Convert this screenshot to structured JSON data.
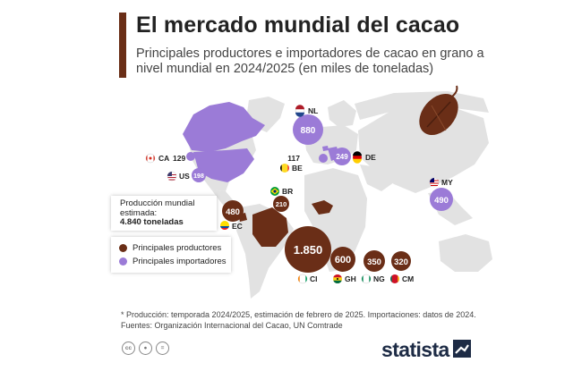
{
  "title": "El mercado mundial del cacao",
  "subtitle": "Principales productores e importadores de cacao en grano a nivel mundial en 2024/2025 (en miles de toneladas)",
  "production_box": {
    "label": "Producción mundial estimada:",
    "value": "4.840 toneladas"
  },
  "legend": {
    "producers_label": "Principales productores",
    "importers_label": "Principales importadores"
  },
  "footnote": {
    "line1": "* Producción: temporada 2024/2025, estimación de febrero de 2025. Importaciones: datos de 2024.",
    "line2": "Fuentes: Organización Internacional del Cacao, UN Comtrade"
  },
  "brand": "statista",
  "license_icons": [
    "cc-icon",
    "person-icon",
    "equals-icon"
  ],
  "colors": {
    "producer": "#6a2e17",
    "importer": "#9b7bd7",
    "map_land": "#e2e2e2",
    "accent": "#6a2e17"
  },
  "chart_data": {
    "type": "map",
    "importers": [
      {
        "code": "NL",
        "value": 880
      },
      {
        "code": "DE",
        "value": 249
      },
      {
        "code": "BE",
        "value": 117
      },
      {
        "code": "CA",
        "value": 129
      },
      {
        "code": "US",
        "value": 198
      },
      {
        "code": "MY",
        "value": 490
      }
    ],
    "producers": [
      {
        "code": "CI",
        "value": "1.850"
      },
      {
        "code": "GH",
        "value": 600
      },
      {
        "code": "NG",
        "value": 350
      },
      {
        "code": "CM",
        "value": 320
      },
      {
        "code": "EC",
        "value": 480
      },
      {
        "code": "BR",
        "value": 210
      }
    ]
  }
}
